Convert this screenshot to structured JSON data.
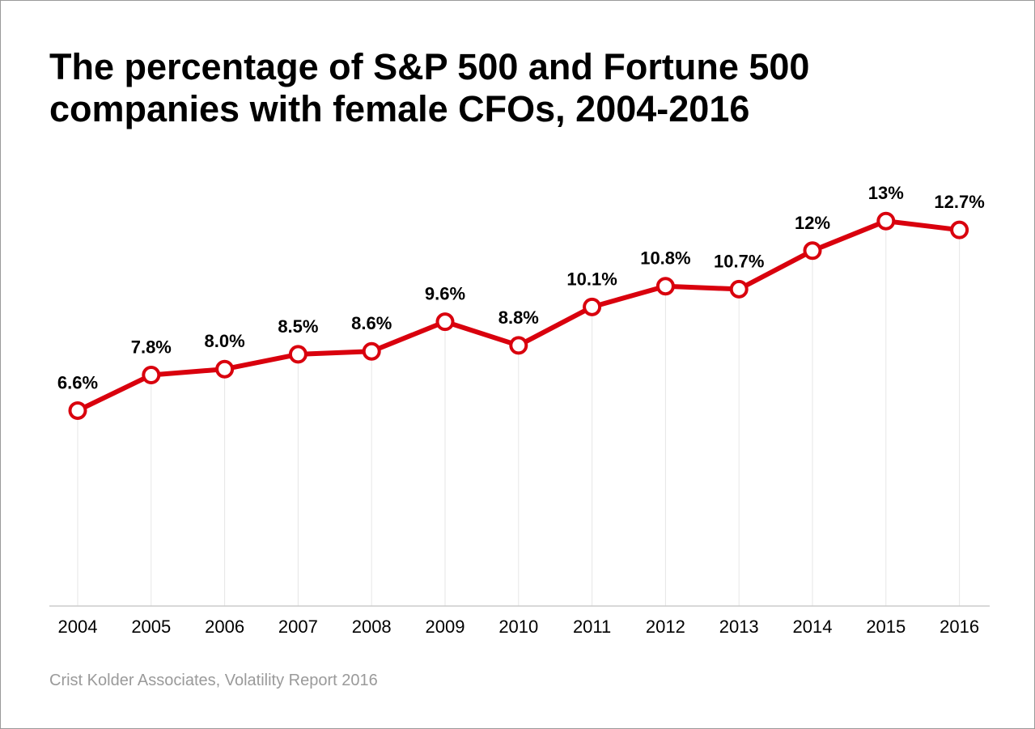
{
  "title": {
    "line1": "The percentage of S&P 500 and Fortune 500",
    "line2": "companies with female CFOs, 2004-2016"
  },
  "source": "Crist Kolder Associates, Volatility Report 2016",
  "colors": {
    "line": "#d9000d",
    "grid": "#e6e6e6",
    "axis": "#cccccc",
    "marker_fill": "#ffffff"
  },
  "chart_data": {
    "type": "line",
    "title": "The percentage of S&P 500 and Fortune 500 companies with female CFOs, 2004-2016",
    "xlabel": "",
    "ylabel": "",
    "categories": [
      "2004",
      "2005",
      "2006",
      "2007",
      "2008",
      "2009",
      "2010",
      "2011",
      "2012",
      "2013",
      "2014",
      "2015",
      "2016"
    ],
    "values": [
      6.6,
      7.8,
      8.0,
      8.5,
      8.6,
      9.6,
      8.8,
      10.1,
      10.8,
      10.7,
      12,
      13,
      12.7
    ],
    "labels": [
      "6.6%",
      "7.8%",
      "8.0%",
      "8.5%",
      "8.6%",
      "9.6%",
      "8.8%",
      "10.1%",
      "10.8%",
      "10.7%",
      "12%",
      "13%",
      "12.7%"
    ],
    "ylim": [
      0,
      13
    ],
    "grid": "vertical",
    "legend": "none"
  }
}
